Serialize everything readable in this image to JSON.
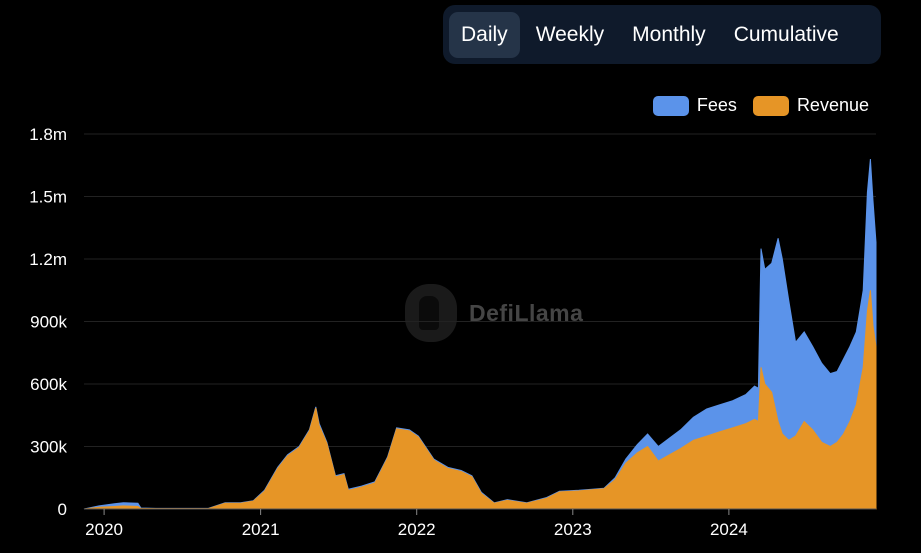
{
  "tabs": [
    {
      "label": "Daily",
      "active": true
    },
    {
      "label": "Weekly",
      "active": false
    },
    {
      "label": "Monthly",
      "active": false
    },
    {
      "label": "Cumulative",
      "active": false
    }
  ],
  "watermark": {
    "text": "DefiLlama"
  },
  "colors": {
    "fees": "#5b93ea",
    "revenue": "#e69526",
    "grid": "#222222"
  },
  "chart_data": {
    "type": "area",
    "stacked": false,
    "title": "",
    "xlabel": "",
    "ylabel": "",
    "ylim": [
      0,
      1800000
    ],
    "xlim": [
      "2019-11-15",
      "2024-12-10"
    ],
    "yticks": [
      0,
      300000,
      600000,
      900000,
      1200000,
      1500000,
      1800000
    ],
    "ytick_labels": [
      "0",
      "300k",
      "600k",
      "900k",
      "1.2m",
      "1.5m",
      "1.8m"
    ],
    "xticks": [
      "2020-01-01",
      "2021-01-01",
      "2022-01-01",
      "2023-01-01",
      "2024-01-01"
    ],
    "xtick_labels": [
      "2020",
      "2021",
      "2022",
      "2023",
      "2024"
    ],
    "legend": {
      "position": "top-right"
    },
    "grid": {
      "horizontal": true,
      "vertical": false
    },
    "series": [
      {
        "name": "Fees",
        "color": "#5b93ea",
        "points": [
          [
            "2019-11-15",
            0
          ],
          [
            "2019-12-20",
            15000
          ],
          [
            "2020-01-25",
            25000
          ],
          [
            "2020-02-15",
            30000
          ],
          [
            "2020-03-20",
            28000
          ],
          [
            "2020-03-27",
            5000
          ],
          [
            "2020-05-01",
            3000
          ],
          [
            "2020-09-01",
            3000
          ],
          [
            "2020-10-10",
            30000
          ],
          [
            "2020-11-15",
            30000
          ],
          [
            "2020-12-15",
            40000
          ],
          [
            "2021-01-10",
            90000
          ],
          [
            "2021-02-10",
            200000
          ],
          [
            "2021-03-05",
            260000
          ],
          [
            "2021-04-01",
            300000
          ],
          [
            "2021-04-25",
            380000
          ],
          [
            "2021-05-10",
            490000
          ],
          [
            "2021-05-18",
            410000
          ],
          [
            "2021-06-05",
            320000
          ],
          [
            "2021-06-25",
            160000
          ],
          [
            "2021-07-15",
            170000
          ],
          [
            "2021-07-25",
            95000
          ],
          [
            "2021-08-25",
            110000
          ],
          [
            "2021-09-25",
            130000
          ],
          [
            "2021-10-25",
            250000
          ],
          [
            "2021-11-15",
            390000
          ],
          [
            "2021-12-15",
            380000
          ],
          [
            "2022-01-05",
            350000
          ],
          [
            "2022-02-10",
            240000
          ],
          [
            "2022-03-15",
            200000
          ],
          [
            "2022-04-15",
            185000
          ],
          [
            "2022-05-10",
            160000
          ],
          [
            "2022-06-01",
            80000
          ],
          [
            "2022-07-01",
            30000
          ],
          [
            "2022-08-01",
            45000
          ],
          [
            "2022-09-15",
            30000
          ],
          [
            "2022-11-01",
            55000
          ],
          [
            "2022-12-01",
            85000
          ],
          [
            "2023-01-15",
            90000
          ],
          [
            "2023-02-15",
            95000
          ],
          [
            "2023-03-15",
            100000
          ],
          [
            "2023-04-10",
            150000
          ],
          [
            "2023-05-05",
            240000
          ],
          [
            "2023-06-01",
            310000
          ],
          [
            "2023-06-25",
            360000
          ],
          [
            "2023-07-20",
            300000
          ],
          [
            "2023-08-15",
            340000
          ],
          [
            "2023-09-10",
            380000
          ],
          [
            "2023-10-10",
            440000
          ],
          [
            "2023-11-10",
            480000
          ],
          [
            "2023-12-10",
            500000
          ],
          [
            "2024-01-10",
            520000
          ],
          [
            "2024-02-10",
            550000
          ],
          [
            "2024-03-01",
            590000
          ],
          [
            "2024-03-10",
            580000
          ],
          [
            "2024-03-16",
            1250000
          ],
          [
            "2024-03-25",
            1150000
          ],
          [
            "2024-04-10",
            1180000
          ],
          [
            "2024-04-25",
            1300000
          ],
          [
            "2024-05-05",
            1200000
          ],
          [
            "2024-05-20",
            1000000
          ],
          [
            "2024-06-05",
            800000
          ],
          [
            "2024-06-25",
            850000
          ],
          [
            "2024-07-15",
            780000
          ],
          [
            "2024-08-05",
            700000
          ],
          [
            "2024-08-25",
            650000
          ],
          [
            "2024-09-10",
            660000
          ],
          [
            "2024-09-25",
            720000
          ],
          [
            "2024-10-10",
            780000
          ],
          [
            "2024-10-25",
            850000
          ],
          [
            "2024-11-10",
            1050000
          ],
          [
            "2024-11-20",
            1520000
          ],
          [
            "2024-11-27",
            1680000
          ],
          [
            "2024-12-03",
            1480000
          ],
          [
            "2024-12-10",
            1280000
          ]
        ]
      },
      {
        "name": "Revenue",
        "color": "#e69526",
        "points": [
          [
            "2019-11-15",
            0
          ],
          [
            "2019-12-20",
            8000
          ],
          [
            "2020-01-25",
            12000
          ],
          [
            "2020-02-15",
            15000
          ],
          [
            "2020-03-20",
            12000
          ],
          [
            "2020-03-27",
            3000
          ],
          [
            "2020-05-01",
            2000
          ],
          [
            "2020-09-01",
            2000
          ],
          [
            "2020-10-10",
            28000
          ],
          [
            "2020-11-15",
            28000
          ],
          [
            "2020-12-15",
            38000
          ],
          [
            "2021-01-10",
            85000
          ],
          [
            "2021-02-10",
            195000
          ],
          [
            "2021-03-05",
            255000
          ],
          [
            "2021-04-01",
            295000
          ],
          [
            "2021-04-25",
            375000
          ],
          [
            "2021-05-10",
            485000
          ],
          [
            "2021-05-18",
            400000
          ],
          [
            "2021-06-05",
            315000
          ],
          [
            "2021-06-25",
            155000
          ],
          [
            "2021-07-15",
            165000
          ],
          [
            "2021-07-25",
            90000
          ],
          [
            "2021-08-25",
            105000
          ],
          [
            "2021-09-25",
            125000
          ],
          [
            "2021-10-25",
            245000
          ],
          [
            "2021-11-15",
            385000
          ],
          [
            "2021-12-15",
            375000
          ],
          [
            "2022-01-05",
            345000
          ],
          [
            "2022-02-10",
            235000
          ],
          [
            "2022-03-15",
            195000
          ],
          [
            "2022-04-15",
            180000
          ],
          [
            "2022-05-10",
            155000
          ],
          [
            "2022-06-01",
            75000
          ],
          [
            "2022-07-01",
            28000
          ],
          [
            "2022-08-01",
            42000
          ],
          [
            "2022-09-15",
            28000
          ],
          [
            "2022-11-01",
            52000
          ],
          [
            "2022-12-01",
            82000
          ],
          [
            "2023-01-15",
            87000
          ],
          [
            "2023-02-15",
            92000
          ],
          [
            "2023-03-15",
            97000
          ],
          [
            "2023-04-10",
            140000
          ],
          [
            "2023-05-05",
            220000
          ],
          [
            "2023-06-01",
            270000
          ],
          [
            "2023-06-25",
            300000
          ],
          [
            "2023-07-20",
            230000
          ],
          [
            "2023-08-15",
            260000
          ],
          [
            "2023-09-10",
            290000
          ],
          [
            "2023-10-10",
            330000
          ],
          [
            "2023-11-10",
            350000
          ],
          [
            "2023-12-10",
            370000
          ],
          [
            "2024-01-10",
            390000
          ],
          [
            "2024-02-10",
            410000
          ],
          [
            "2024-03-01",
            430000
          ],
          [
            "2024-03-10",
            420000
          ],
          [
            "2024-03-16",
            680000
          ],
          [
            "2024-03-25",
            600000
          ],
          [
            "2024-04-10",
            560000
          ],
          [
            "2024-04-25",
            420000
          ],
          [
            "2024-05-05",
            360000
          ],
          [
            "2024-05-20",
            330000
          ],
          [
            "2024-06-05",
            350000
          ],
          [
            "2024-06-25",
            420000
          ],
          [
            "2024-07-15",
            380000
          ],
          [
            "2024-08-05",
            320000
          ],
          [
            "2024-08-25",
            300000
          ],
          [
            "2024-09-10",
            320000
          ],
          [
            "2024-09-25",
            360000
          ],
          [
            "2024-10-10",
            420000
          ],
          [
            "2024-10-25",
            500000
          ],
          [
            "2024-11-10",
            680000
          ],
          [
            "2024-11-20",
            950000
          ],
          [
            "2024-11-27",
            1050000
          ],
          [
            "2024-12-03",
            880000
          ],
          [
            "2024-12-10",
            780000
          ]
        ]
      }
    ]
  }
}
